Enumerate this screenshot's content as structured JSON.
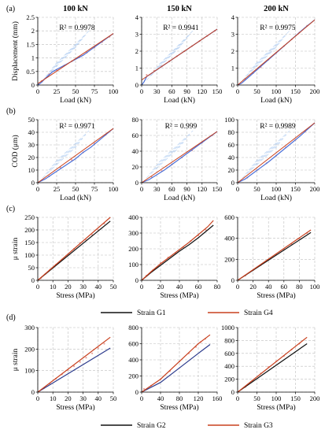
{
  "column_titles": [
    "100 kN",
    "150 kN",
    "200 kN"
  ],
  "colors": {
    "blue": "#4a6fd8",
    "red": "#c8401e",
    "black": "#111111",
    "pink": "#e9a29a",
    "lightblue": "#a9c8f0"
  },
  "legends": {
    "c": [
      {
        "name": "Strain G1",
        "color": "#111111"
      },
      {
        "name": "Strain G4",
        "color": "#c8401e"
      }
    ],
    "d": [
      {
        "name": "Strain G2",
        "color": "#111111"
      },
      {
        "name": "Strain G3",
        "color": "#c8401e"
      }
    ]
  },
  "chart_data": [
    {
      "id": "a1",
      "panel": "(a)",
      "type": "line",
      "title": "100 kN",
      "xlabel": "Load (kN)",
      "ylabel": "Displacement (mm)",
      "xlim": [
        0,
        100
      ],
      "ylim": [
        0,
        2.5
      ],
      "xticks": [
        0,
        25,
        50,
        75,
        100
      ],
      "yticks": [
        0,
        0.5,
        1,
        1.5,
        2,
        2.5
      ],
      "annotation": "R² = 0.9978",
      "series": [
        {
          "color": "#4a6fd8",
          "width": 1.2,
          "x": [
            0,
            5,
            10,
            20,
            30,
            40,
            50,
            60,
            70,
            80,
            90,
            100
          ],
          "y": [
            0,
            0.1,
            0.25,
            0.5,
            0.65,
            0.8,
            0.95,
            1.1,
            1.3,
            1.5,
            1.7,
            1.9
          ]
        },
        {
          "color": "#c8401e",
          "width": 1.0,
          "x": [
            0,
            100
          ],
          "y": [
            0.05,
            1.9
          ]
        }
      ],
      "points": {
        "color": "#e9a29a",
        "x": [
          5,
          15,
          25,
          35,
          45,
          55,
          65,
          75,
          85,
          95
        ],
        "y": [
          0.15,
          0.4,
          0.55,
          0.72,
          0.88,
          1.02,
          1.2,
          1.38,
          1.58,
          1.78
        ]
      }
    },
    {
      "id": "a2",
      "panel": "",
      "type": "line",
      "title": "150 kN",
      "xlabel": "Load (kN)",
      "ylabel": "",
      "xlim": [
        0,
        150
      ],
      "ylim": [
        0,
        4
      ],
      "xticks": [
        0,
        30,
        60,
        90,
        120,
        150
      ],
      "yticks": [
        0,
        1,
        2,
        3,
        4
      ],
      "annotation": "R² = 0.9941",
      "series": [
        {
          "color": "#4a6fd8",
          "width": 1.2,
          "x": [
            0,
            5,
            10,
            20,
            30,
            45,
            60,
            75,
            90,
            105,
            120,
            135,
            150
          ],
          "y": [
            0,
            0.2,
            0.5,
            0.7,
            0.9,
            1.2,
            1.5,
            1.8,
            2.1,
            2.4,
            2.7,
            3.0,
            3.3
          ]
        },
        {
          "color": "#c8401e",
          "width": 1.0,
          "x": [
            0,
            150
          ],
          "y": [
            0.3,
            3.3
          ]
        }
      ],
      "points": {
        "color": "#e9a29a",
        "x": [
          10,
          25,
          40,
          55,
          70,
          85,
          100,
          115,
          130,
          145
        ],
        "y": [
          0.6,
          0.85,
          1.1,
          1.4,
          1.7,
          2.0,
          2.3,
          2.6,
          2.9,
          3.2
        ]
      }
    },
    {
      "id": "a3",
      "panel": "",
      "type": "line",
      "title": "200 kN",
      "xlabel": "Load (kN)",
      "ylabel": "",
      "xlim": [
        0,
        200
      ],
      "ylim": [
        0,
        4
      ],
      "xticks": [
        0,
        50,
        100,
        150,
        200
      ],
      "yticks": [
        0,
        1,
        2,
        3,
        4
      ],
      "annotation": "R² = 0.9975",
      "series": [
        {
          "color": "#4a6fd8",
          "width": 1.2,
          "x": [
            0,
            10,
            25,
            50,
            75,
            100,
            125,
            150,
            175,
            200
          ],
          "y": [
            0,
            0.1,
            0.4,
            0.9,
            1.4,
            1.9,
            2.4,
            2.9,
            3.4,
            3.85
          ]
        },
        {
          "color": "#c8401e",
          "width": 1.0,
          "x": [
            0,
            200
          ],
          "y": [
            0,
            3.85
          ]
        }
      ],
      "points": {
        "color": "#e9a29a",
        "x": [
          20,
          40,
          60,
          80,
          100,
          120,
          140,
          160,
          180
        ],
        "y": [
          0.35,
          0.7,
          1.05,
          1.5,
          1.9,
          2.3,
          2.7,
          3.1,
          3.5
        ]
      }
    },
    {
      "id": "b1",
      "panel": "(b)",
      "type": "line",
      "title": "",
      "xlabel": "Load (kN)",
      "ylabel": "COD (μm)",
      "xlim": [
        0,
        100
      ],
      "ylim": [
        0,
        50
      ],
      "xticks": [
        0,
        25,
        50,
        75,
        100
      ],
      "yticks": [
        0,
        10,
        20,
        30,
        40,
        50
      ],
      "annotation": "R² = 0.9971",
      "series": [
        {
          "color": "#4a6fd8",
          "width": 1.2,
          "x": [
            0,
            10,
            20,
            30,
            40,
            50,
            60,
            70,
            80,
            90,
            100
          ],
          "y": [
            0,
            3,
            7,
            11,
            15,
            19,
            24,
            28,
            33,
            38,
            43
          ]
        },
        {
          "color": "#c8401e",
          "width": 1.0,
          "x": [
            0,
            100
          ],
          "y": [
            0,
            43
          ]
        }
      ],
      "points": {
        "color": "#e9a29a",
        "x": [
          15,
          30,
          45,
          60,
          75,
          90
        ],
        "y": [
          5,
          12,
          18,
          24,
          31,
          38
        ]
      }
    },
    {
      "id": "b2",
      "panel": "",
      "type": "line",
      "title": "",
      "xlabel": "Load (kN)",
      "ylabel": "",
      "xlim": [
        0,
        150
      ],
      "ylim": [
        0,
        80
      ],
      "xticks": [
        0,
        30,
        60,
        90,
        120,
        150
      ],
      "yticks": [
        0,
        20,
        40,
        60,
        80
      ],
      "annotation": "R² = 0.999",
      "series": [
        {
          "color": "#4a6fd8",
          "width": 1.2,
          "x": [
            0,
            15,
            30,
            45,
            60,
            75,
            90,
            105,
            120,
            135,
            150
          ],
          "y": [
            0,
            4,
            10,
            16,
            23,
            30,
            37,
            44,
            51,
            58,
            65
          ]
        },
        {
          "color": "#c8401e",
          "width": 1.0,
          "x": [
            0,
            150
          ],
          "y": [
            0,
            65
          ]
        }
      ],
      "points": {
        "color": "#e9a29a",
        "x": [
          20,
          40,
          60,
          80,
          100,
          120,
          140
        ],
        "y": [
          7,
          15,
          23,
          32,
          41,
          51,
          60
        ]
      }
    },
    {
      "id": "b3",
      "panel": "",
      "type": "line",
      "title": "",
      "xlabel": "Load (kN)",
      "ylabel": "",
      "xlim": [
        0,
        200
      ],
      "ylim": [
        0,
        100
      ],
      "xticks": [
        0,
        50,
        100,
        150,
        200
      ],
      "yticks": [
        0,
        20,
        40,
        60,
        80,
        100
      ],
      "annotation": "R² = 0.9989",
      "series": [
        {
          "color": "#4a6fd8",
          "width": 1.2,
          "x": [
            0,
            20,
            40,
            60,
            80,
            100,
            120,
            140,
            160,
            180,
            200
          ],
          "y": [
            0,
            6,
            15,
            24,
            33,
            43,
            53,
            63,
            73,
            84,
            95
          ]
        },
        {
          "color": "#c8401e",
          "width": 1.0,
          "x": [
            0,
            200
          ],
          "y": [
            0,
            95
          ]
        }
      ],
      "points": {
        "color": "#e9a29a",
        "x": [
          25,
          50,
          75,
          100,
          125,
          150,
          175
        ],
        "y": [
          8,
          20,
          31,
          43,
          56,
          68,
          81
        ]
      }
    },
    {
      "id": "c1",
      "panel": "(c)",
      "type": "line",
      "title": "",
      "xlabel": "Stress (MPa)",
      "ylabel": "μ strain",
      "xlim": [
        0,
        50
      ],
      "ylim": [
        0,
        250
      ],
      "xticks": [
        0,
        10,
        20,
        30,
        40,
        50
      ],
      "yticks": [
        0,
        50,
        100,
        150,
        200,
        250
      ],
      "annotation": "",
      "series": [
        {
          "color": "#111111",
          "width": 1.2,
          "x": [
            0,
            48
          ],
          "y": [
            0,
            235
          ]
        },
        {
          "color": "#c8401e",
          "width": 1.2,
          "x": [
            0,
            48
          ],
          "y": [
            0,
            250
          ]
        }
      ],
      "points": {
        "color": "#e9a29a",
        "x": [
          2,
          5,
          8,
          12,
          16,
          20,
          24,
          28,
          32,
          36,
          40,
          44
        ],
        "y": [
          8,
          25,
          42,
          62,
          82,
          102,
          125,
          148,
          160,
          180,
          200,
          225
        ]
      }
    },
    {
      "id": "c2",
      "panel": "",
      "type": "line",
      "title": "",
      "xlabel": "Stress (MPa)",
      "ylabel": "",
      "xlim": [
        0,
        80
      ],
      "ylim": [
        0,
        400
      ],
      "xticks": [
        0,
        20,
        40,
        60,
        80
      ],
      "yticks": [
        0,
        100,
        200,
        300,
        400
      ],
      "annotation": "",
      "series": [
        {
          "color": "#111111",
          "width": 1.2,
          "x": [
            0,
            10,
            20,
            30,
            40,
            50,
            60,
            70,
            76
          ],
          "y": [
            0,
            50,
            95,
            140,
            185,
            225,
            270,
            320,
            350
          ]
        },
        {
          "color": "#c8401e",
          "width": 1.2,
          "x": [
            0,
            10,
            20,
            30,
            40,
            50,
            60,
            70,
            76
          ],
          "y": [
            0,
            55,
            105,
            150,
            195,
            240,
            290,
            340,
            380
          ]
        }
      ],
      "points": {
        "color": "#e9a29a",
        "x": [
          5,
          12,
          20,
          28,
          36,
          44,
          52,
          60,
          68
        ],
        "y": [
          30,
          65,
          110,
          145,
          170,
          210,
          250,
          285,
          320
        ]
      }
    },
    {
      "id": "c3",
      "panel": "",
      "type": "line",
      "title": "",
      "xlabel": "Stress (MPa)",
      "ylabel": "",
      "xlim": [
        0,
        100
      ],
      "ylim": [
        0,
        600
      ],
      "xticks": [
        0,
        20,
        40,
        60,
        80,
        100
      ],
      "yticks": [
        0,
        200,
        400,
        600
      ],
      "annotation": "",
      "series": [
        {
          "color": "#111111",
          "width": 1.2,
          "x": [
            0,
            95
          ],
          "y": [
            0,
            455
          ]
        },
        {
          "color": "#c8401e",
          "width": 1.2,
          "x": [
            0,
            95
          ],
          "y": [
            0,
            480
          ]
        }
      ],
      "points": {
        "color": "#e9a29a",
        "x": [
          10,
          20,
          30,
          40,
          50,
          60,
          70,
          80,
          90
        ],
        "y": [
          45,
          95,
          145,
          195,
          245,
          295,
          345,
          395,
          450
        ]
      }
    },
    {
      "id": "d1",
      "panel": "(d)",
      "type": "line",
      "title": "",
      "xlabel": "Stress (MPa)",
      "ylabel": "μ strain",
      "xlim": [
        0,
        50
      ],
      "ylim": [
        0,
        300
      ],
      "xticks": [
        0,
        10,
        20,
        30,
        40,
        50
      ],
      "yticks": [
        0,
        100,
        200,
        300
      ],
      "annotation": "",
      "series": [
        {
          "color": "#2b3a8c",
          "width": 1.2,
          "x": [
            0,
            48
          ],
          "y": [
            0,
            205
          ]
        },
        {
          "color": "#c8401e",
          "width": 1.2,
          "x": [
            0,
            48
          ],
          "y": [
            0,
            255
          ]
        }
      ],
      "points": {
        "color": "#e9a29a",
        "x": [
          4,
          8,
          12,
          16,
          20,
          24,
          28,
          32,
          36,
          40,
          44
        ],
        "y": [
          18,
          40,
          62,
          82,
          102,
          120,
          140,
          160,
          180,
          205,
          225
        ]
      }
    },
    {
      "id": "d2",
      "panel": "",
      "type": "line",
      "title": "",
      "xlabel": "Stress (MPa)",
      "ylabel": "",
      "xlim": [
        0,
        160
      ],
      "ylim": [
        0,
        800
      ],
      "xticks": [
        0,
        40,
        80,
        120,
        160
      ],
      "yticks": [
        0,
        200,
        400,
        600,
        800
      ],
      "annotation": "",
      "series": [
        {
          "color": "#2b3a8c",
          "width": 1.2,
          "x": [
            0,
            40,
            80,
            120,
            145
          ],
          "y": [
            0,
            120,
            300,
            480,
            590
          ]
        },
        {
          "color": "#c8401e",
          "width": 1.2,
          "x": [
            0,
            40,
            80,
            120,
            145
          ],
          "y": [
            0,
            160,
            380,
            600,
            710
          ]
        }
      ],
      "points": {
        "color": "#e9a29a",
        "x": [
          5,
          20,
          40,
          60,
          80,
          100,
          115,
          125,
          135
        ],
        "y": [
          40,
          80,
          160,
          260,
          380,
          480,
          560,
          620,
          660
        ]
      }
    },
    {
      "id": "d3",
      "panel": "",
      "type": "line",
      "title": "",
      "xlabel": "Stress (MPa)",
      "ylabel": "",
      "xlim": [
        0,
        200
      ],
      "ylim": [
        0,
        1000
      ],
      "xticks": [
        0,
        50,
        100,
        150,
        200
      ],
      "yticks": [
        0,
        200,
        400,
        600,
        800,
        1000
      ],
      "annotation": "",
      "series": [
        {
          "color": "#111111",
          "width": 1.2,
          "x": [
            0,
            180
          ],
          "y": [
            0,
            750
          ]
        },
        {
          "color": "#c8401e",
          "width": 1.2,
          "x": [
            0,
            180
          ],
          "y": [
            0,
            850
          ]
        }
      ],
      "points": {
        "color": "#e9a29a",
        "x": [
          20,
          40,
          60,
          80,
          100,
          120,
          140,
          160
        ],
        "y": [
          80,
          180,
          290,
          390,
          480,
          560,
          660,
          750
        ]
      }
    }
  ]
}
